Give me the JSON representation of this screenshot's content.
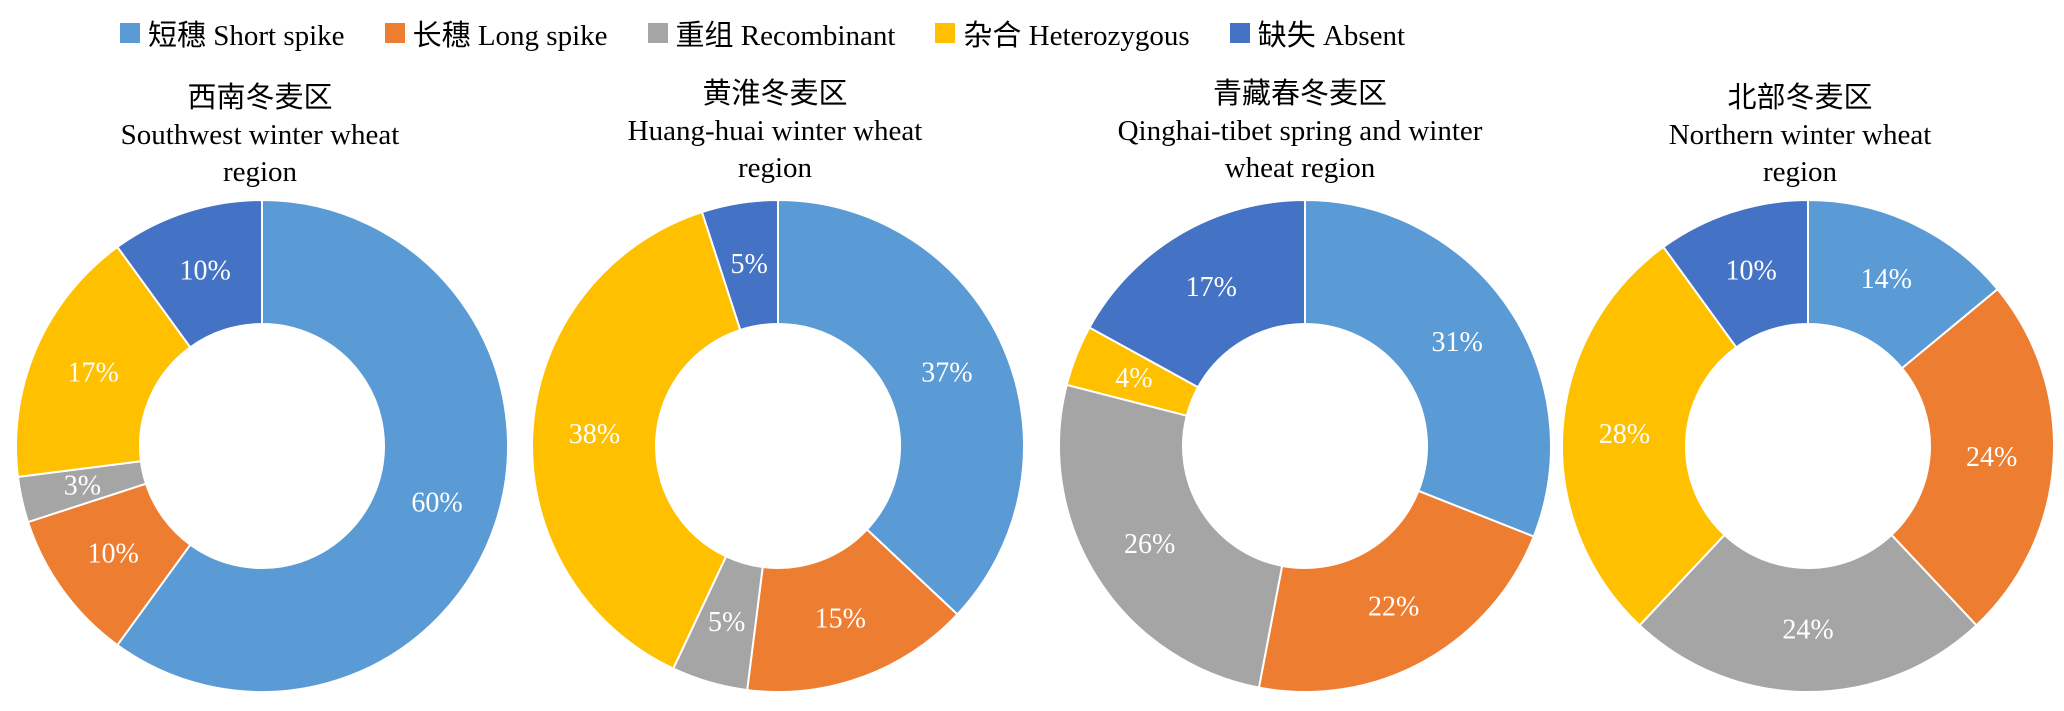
{
  "legend": [
    {
      "label": "短穗 Short spike",
      "color": "#5B9BD5"
    },
    {
      "label": "长穗 Long spike",
      "color": "#ED7D31"
    },
    {
      "label": "重组 Recombinant",
      "color": "#A5A5A5"
    },
    {
      "label": "杂合 Heterozygous",
      "color": "#FFC000"
    },
    {
      "label": "缺失 Absent",
      "color": "#4472C4"
    }
  ],
  "chart_data": [
    {
      "type": "pie",
      "title": [
        "西南冬麦区",
        "Southwest winter wheat",
        "region"
      ],
      "categories": [
        "短穗 Short spike",
        "长穗 Long spike",
        "重组 Recombinant",
        "杂合 Heterozygous",
        "缺失 Absent"
      ],
      "values": [
        60,
        10,
        3,
        17,
        10
      ],
      "labels": [
        "60%",
        "10%",
        "3%",
        "17%",
        "10%"
      ]
    },
    {
      "type": "pie",
      "title": [
        "黄淮冬麦区",
        "Huang-huai winter wheat",
        "region"
      ],
      "categories": [
        "短穗 Short spike",
        "长穗 Long spike",
        "重组 Recombinant",
        "杂合 Heterozygous",
        "缺失 Absent"
      ],
      "values": [
        37,
        15,
        5,
        38,
        5
      ],
      "labels": [
        "37%",
        "15%",
        "5%",
        "38%",
        "5%"
      ]
    },
    {
      "type": "pie",
      "title": [
        "青藏春冬麦区",
        "Qinghai-tibet spring and winter",
        "wheat region"
      ],
      "categories": [
        "短穗 Short spike",
        "长穗 Long spike",
        "重组 Recombinant",
        "杂合 Heterozygous",
        "缺失 Absent"
      ],
      "values": [
        31,
        22,
        26,
        4,
        17
      ],
      "labels": [
        "31%",
        "22%",
        "26%",
        "4%",
        "17%"
      ]
    },
    {
      "type": "pie",
      "title": [
        "北部冬麦区",
        "Northern winter wheat",
        "region"
      ],
      "categories": [
        "短穗 Short spike",
        "长穗 Long spike",
        "重组 Recombinant",
        "杂合 Heterozygous",
        "缺失 Absent"
      ],
      "values": [
        14,
        24,
        24,
        28,
        10
      ],
      "labels": [
        "14%",
        "24%",
        "24%",
        "28%",
        "10%"
      ]
    }
  ]
}
